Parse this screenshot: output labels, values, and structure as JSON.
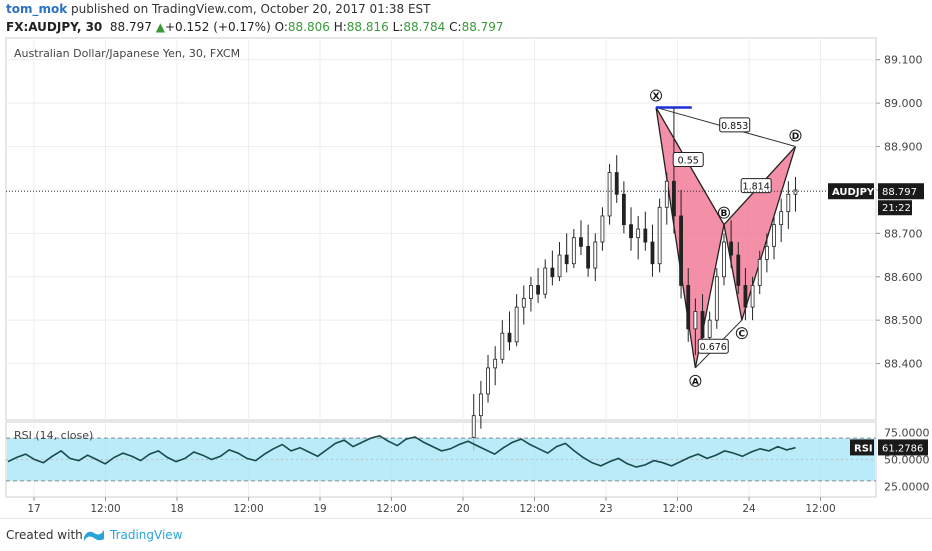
{
  "header": {
    "author": "tom_mok",
    "published_text": "published on TradingView.com, October 20, 2017 01:38 EST",
    "symbol": "FX:AUDJPY, 30",
    "last": "88.797",
    "change": "+0.152 (+0.17%)",
    "o_label": "O:",
    "o": "88.806",
    "h_label": "H:",
    "h": "88.816",
    "l_label": "L:",
    "l": "88.784",
    "c_label": "C:",
    "c": "88.797"
  },
  "footer": {
    "created_with": "Created with",
    "brand": "TradingView"
  },
  "colors": {
    "pattern_fill": "#ef6a8a",
    "rsi_band": "#a8e6f7",
    "pointer_label": "#1a1a1a",
    "x_level_line": "#1e2fd9"
  },
  "chart_data": {
    "type": "candlestick",
    "title": "Australian Dollar/Japanese Yen, 30, FXCM",
    "price_axis": {
      "ylim": [
        88.27,
        89.15
      ],
      "ticks": [
        "89.100",
        "89.000",
        "88.900",
        "88.800",
        "88.700",
        "88.600",
        "88.500",
        "88.400"
      ],
      "tick_values": [
        89.1,
        89.0,
        88.9,
        88.8,
        88.7,
        88.6,
        88.5,
        88.4
      ]
    },
    "current_price": {
      "symbol": "AUDJPY",
      "value": "88.797",
      "countdown": "21:22"
    },
    "time_axis": {
      "labels": [
        "17",
        "12:00",
        "18",
        "12:00",
        "19",
        "12:00",
        "20",
        "12:00",
        "23",
        "12:00",
        "24",
        "12:00"
      ]
    },
    "candles": [
      {
        "x": 12.3,
        "o": 88.23,
        "h": 88.33,
        "l": 88.2,
        "c": 88.28
      },
      {
        "x": 12.5,
        "o": 88.28,
        "h": 88.36,
        "l": 88.25,
        "c": 88.33
      },
      {
        "x": 12.7,
        "o": 88.33,
        "h": 88.42,
        "l": 88.31,
        "c": 88.39
      },
      {
        "x": 12.9,
        "o": 88.39,
        "h": 88.44,
        "l": 88.35,
        "c": 88.41
      },
      {
        "x": 13.1,
        "o": 88.41,
        "h": 88.5,
        "l": 88.4,
        "c": 88.47
      },
      {
        "x": 13.3,
        "o": 88.47,
        "h": 88.52,
        "l": 88.43,
        "c": 88.45
      },
      {
        "x": 13.5,
        "o": 88.45,
        "h": 88.56,
        "l": 88.44,
        "c": 88.53
      },
      {
        "x": 13.7,
        "o": 88.53,
        "h": 88.58,
        "l": 88.49,
        "c": 88.55
      },
      {
        "x": 13.9,
        "o": 88.55,
        "h": 88.6,
        "l": 88.52,
        "c": 88.58
      },
      {
        "x": 14.1,
        "o": 88.58,
        "h": 88.62,
        "l": 88.54,
        "c": 88.56
      },
      {
        "x": 14.3,
        "o": 88.56,
        "h": 88.64,
        "l": 88.55,
        "c": 88.62
      },
      {
        "x": 14.5,
        "o": 88.62,
        "h": 88.66,
        "l": 88.58,
        "c": 88.6
      },
      {
        "x": 14.7,
        "o": 88.6,
        "h": 88.68,
        "l": 88.59,
        "c": 88.65
      },
      {
        "x": 14.9,
        "o": 88.65,
        "h": 88.7,
        "l": 88.61,
        "c": 88.63
      },
      {
        "x": 15.1,
        "o": 88.63,
        "h": 88.71,
        "l": 88.62,
        "c": 88.69
      },
      {
        "x": 15.3,
        "o": 88.69,
        "h": 88.73,
        "l": 88.65,
        "c": 88.67
      },
      {
        "x": 15.5,
        "o": 88.67,
        "h": 88.72,
        "l": 88.6,
        "c": 88.62
      },
      {
        "x": 15.7,
        "o": 88.62,
        "h": 88.7,
        "l": 88.59,
        "c": 88.68
      },
      {
        "x": 15.9,
        "o": 88.68,
        "h": 88.76,
        "l": 88.66,
        "c": 88.74
      },
      {
        "x": 16.1,
        "o": 88.74,
        "h": 88.86,
        "l": 88.72,
        "c": 88.84
      },
      {
        "x": 16.3,
        "o": 88.84,
        "h": 88.88,
        "l": 88.77,
        "c": 88.79
      },
      {
        "x": 16.5,
        "o": 88.79,
        "h": 88.82,
        "l": 88.7,
        "c": 88.72
      },
      {
        "x": 16.7,
        "o": 88.72,
        "h": 88.76,
        "l": 88.66,
        "c": 88.69
      },
      {
        "x": 16.9,
        "o": 88.69,
        "h": 88.74,
        "l": 88.64,
        "c": 88.71
      },
      {
        "x": 17.1,
        "o": 88.71,
        "h": 88.75,
        "l": 88.66,
        "c": 88.68
      },
      {
        "x": 17.3,
        "o": 88.68,
        "h": 88.72,
        "l": 88.6,
        "c": 88.63
      },
      {
        "x": 17.5,
        "o": 88.63,
        "h": 88.78,
        "l": 88.61,
        "c": 88.76
      },
      {
        "x": 17.7,
        "o": 88.76,
        "h": 88.84,
        "l": 88.72,
        "c": 88.82
      },
      {
        "x": 17.9,
        "o": 88.82,
        "h": 88.99,
        "l": 88.7,
        "c": 88.74
      },
      {
        "x": 18.1,
        "o": 88.74,
        "h": 88.8,
        "l": 88.55,
        "c": 88.58
      },
      {
        "x": 18.3,
        "o": 88.58,
        "h": 88.62,
        "l": 88.45,
        "c": 88.48
      },
      {
        "x": 18.5,
        "o": 88.48,
        "h": 88.55,
        "l": 88.42,
        "c": 88.52
      },
      {
        "x": 18.7,
        "o": 88.52,
        "h": 88.56,
        "l": 88.43,
        "c": 88.46
      },
      {
        "x": 18.9,
        "o": 88.46,
        "h": 88.52,
        "l": 88.43,
        "c": 88.5
      },
      {
        "x": 19.1,
        "o": 88.5,
        "h": 88.62,
        "l": 88.48,
        "c": 88.6
      },
      {
        "x": 19.3,
        "o": 88.6,
        "h": 88.7,
        "l": 88.58,
        "c": 88.68
      },
      {
        "x": 19.5,
        "o": 88.68,
        "h": 88.73,
        "l": 88.62,
        "c": 88.65
      },
      {
        "x": 19.7,
        "o": 88.65,
        "h": 88.68,
        "l": 88.56,
        "c": 88.58
      },
      {
        "x": 19.9,
        "o": 88.58,
        "h": 88.62,
        "l": 88.5,
        "c": 88.53
      },
      {
        "x": 20.1,
        "o": 88.53,
        "h": 88.6,
        "l": 88.5,
        "c": 88.58
      },
      {
        "x": 20.3,
        "o": 88.58,
        "h": 88.66,
        "l": 88.56,
        "c": 88.64
      },
      {
        "x": 20.5,
        "o": 88.64,
        "h": 88.7,
        "l": 88.61,
        "c": 88.67
      },
      {
        "x": 20.7,
        "o": 88.67,
        "h": 88.74,
        "l": 88.64,
        "c": 88.72
      },
      {
        "x": 20.9,
        "o": 88.72,
        "h": 88.78,
        "l": 88.68,
        "c": 88.75
      },
      {
        "x": 21.1,
        "o": 88.75,
        "h": 88.82,
        "l": 88.71,
        "c": 88.79
      },
      {
        "x": 21.3,
        "o": 88.79,
        "h": 88.83,
        "l": 88.75,
        "c": 88.8
      }
    ],
    "harmonic_pattern": {
      "points": [
        {
          "label": "X",
          "x": 17.4,
          "y": 88.99
        },
        {
          "label": "A",
          "x": 18.5,
          "y": 88.39
        },
        {
          "label": "B",
          "x": 19.3,
          "y": 88.72
        },
        {
          "label": "C",
          "x": 19.8,
          "y": 88.5
        },
        {
          "label": "D",
          "x": 21.3,
          "y": 88.9
        }
      ],
      "ratios": [
        {
          "label": "0.55",
          "x": 18.3,
          "y": 88.87
        },
        {
          "label": "0.676",
          "x": 19.0,
          "y": 88.44
        },
        {
          "label": "1.814",
          "x": 20.2,
          "y": 88.81
        },
        {
          "label": "0.853",
          "x": 19.6,
          "y": 88.95
        }
      ]
    },
    "x_level": {
      "x1": 17.4,
      "x2": 18.4,
      "y": 88.99
    },
    "rsi": {
      "label": "RSI (14, close)",
      "value": "61.2786",
      "axis_label": "RSI",
      "ylim": [
        15,
        85
      ],
      "band": [
        30,
        70
      ],
      "ticks": [
        "75.0000",
        "50.0000",
        "25.0000"
      ],
      "tick_values": [
        75,
        50,
        25
      ],
      "values": [
        48,
        52,
        55,
        50,
        47,
        53,
        58,
        51,
        49,
        54,
        50,
        46,
        52,
        56,
        53,
        49,
        55,
        58,
        52,
        48,
        51,
        57,
        54,
        50,
        53,
        59,
        56,
        51,
        49,
        55,
        60,
        64,
        58,
        61,
        57,
        53,
        59,
        65,
        68,
        62,
        66,
        70,
        72,
        67,
        63,
        69,
        71,
        66,
        62,
        58,
        60,
        64,
        67,
        63,
        59,
        55,
        61,
        66,
        69,
        64,
        60,
        56,
        62,
        65,
        58,
        52,
        47,
        44,
        48,
        51,
        46,
        43,
        45,
        49,
        47,
        44,
        48,
        52,
        55,
        51,
        54,
        58,
        56,
        53,
        57,
        60,
        58,
        62,
        59,
        61
      ]
    },
    "xlabel": "",
    "ylabel": ""
  }
}
